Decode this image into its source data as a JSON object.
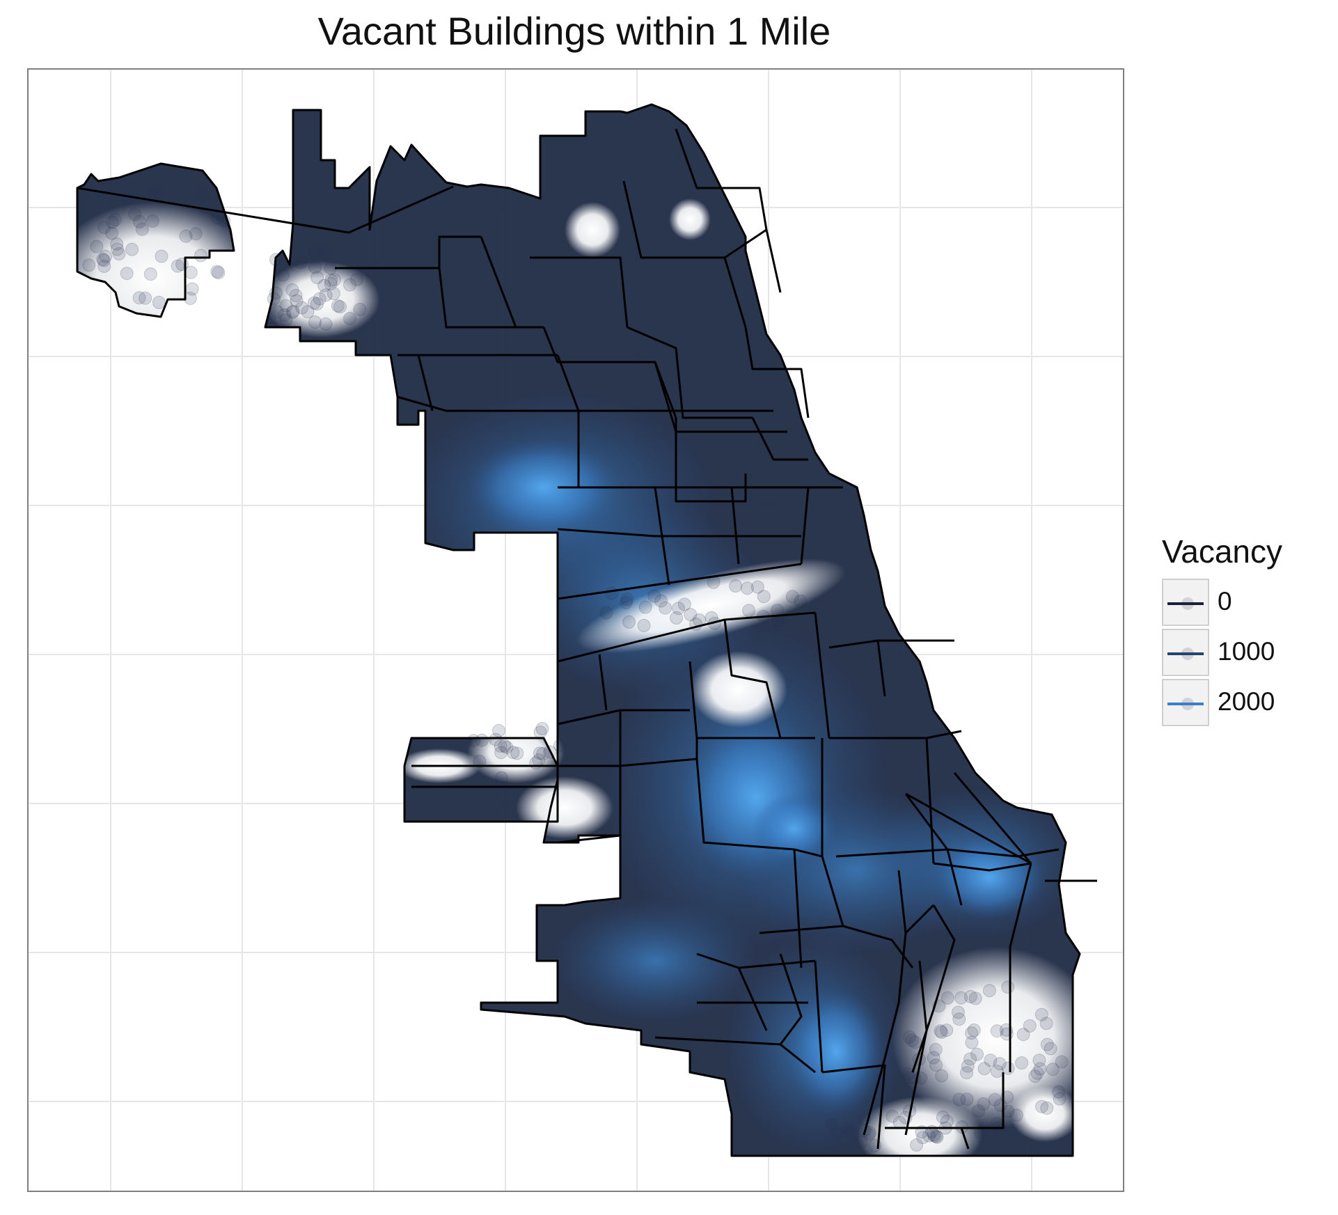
{
  "title": "Vacant Buildings within 1 Mile",
  "legend": {
    "title": "Vacancy",
    "items": [
      {
        "label": "0",
        "color": "#1a2238"
      },
      {
        "label": "1000",
        "color": "#22446e"
      },
      {
        "label": "2000",
        "color": "#3b7fc8"
      }
    ]
  },
  "colors": {
    "low": "#1a2238",
    "mid": "#22446e",
    "high": "#3b7fc8",
    "peak": "#4ea2ec",
    "boundary": "#000000",
    "grid": "#e6e6e6",
    "panel_border": "#7f7f7f"
  }
}
